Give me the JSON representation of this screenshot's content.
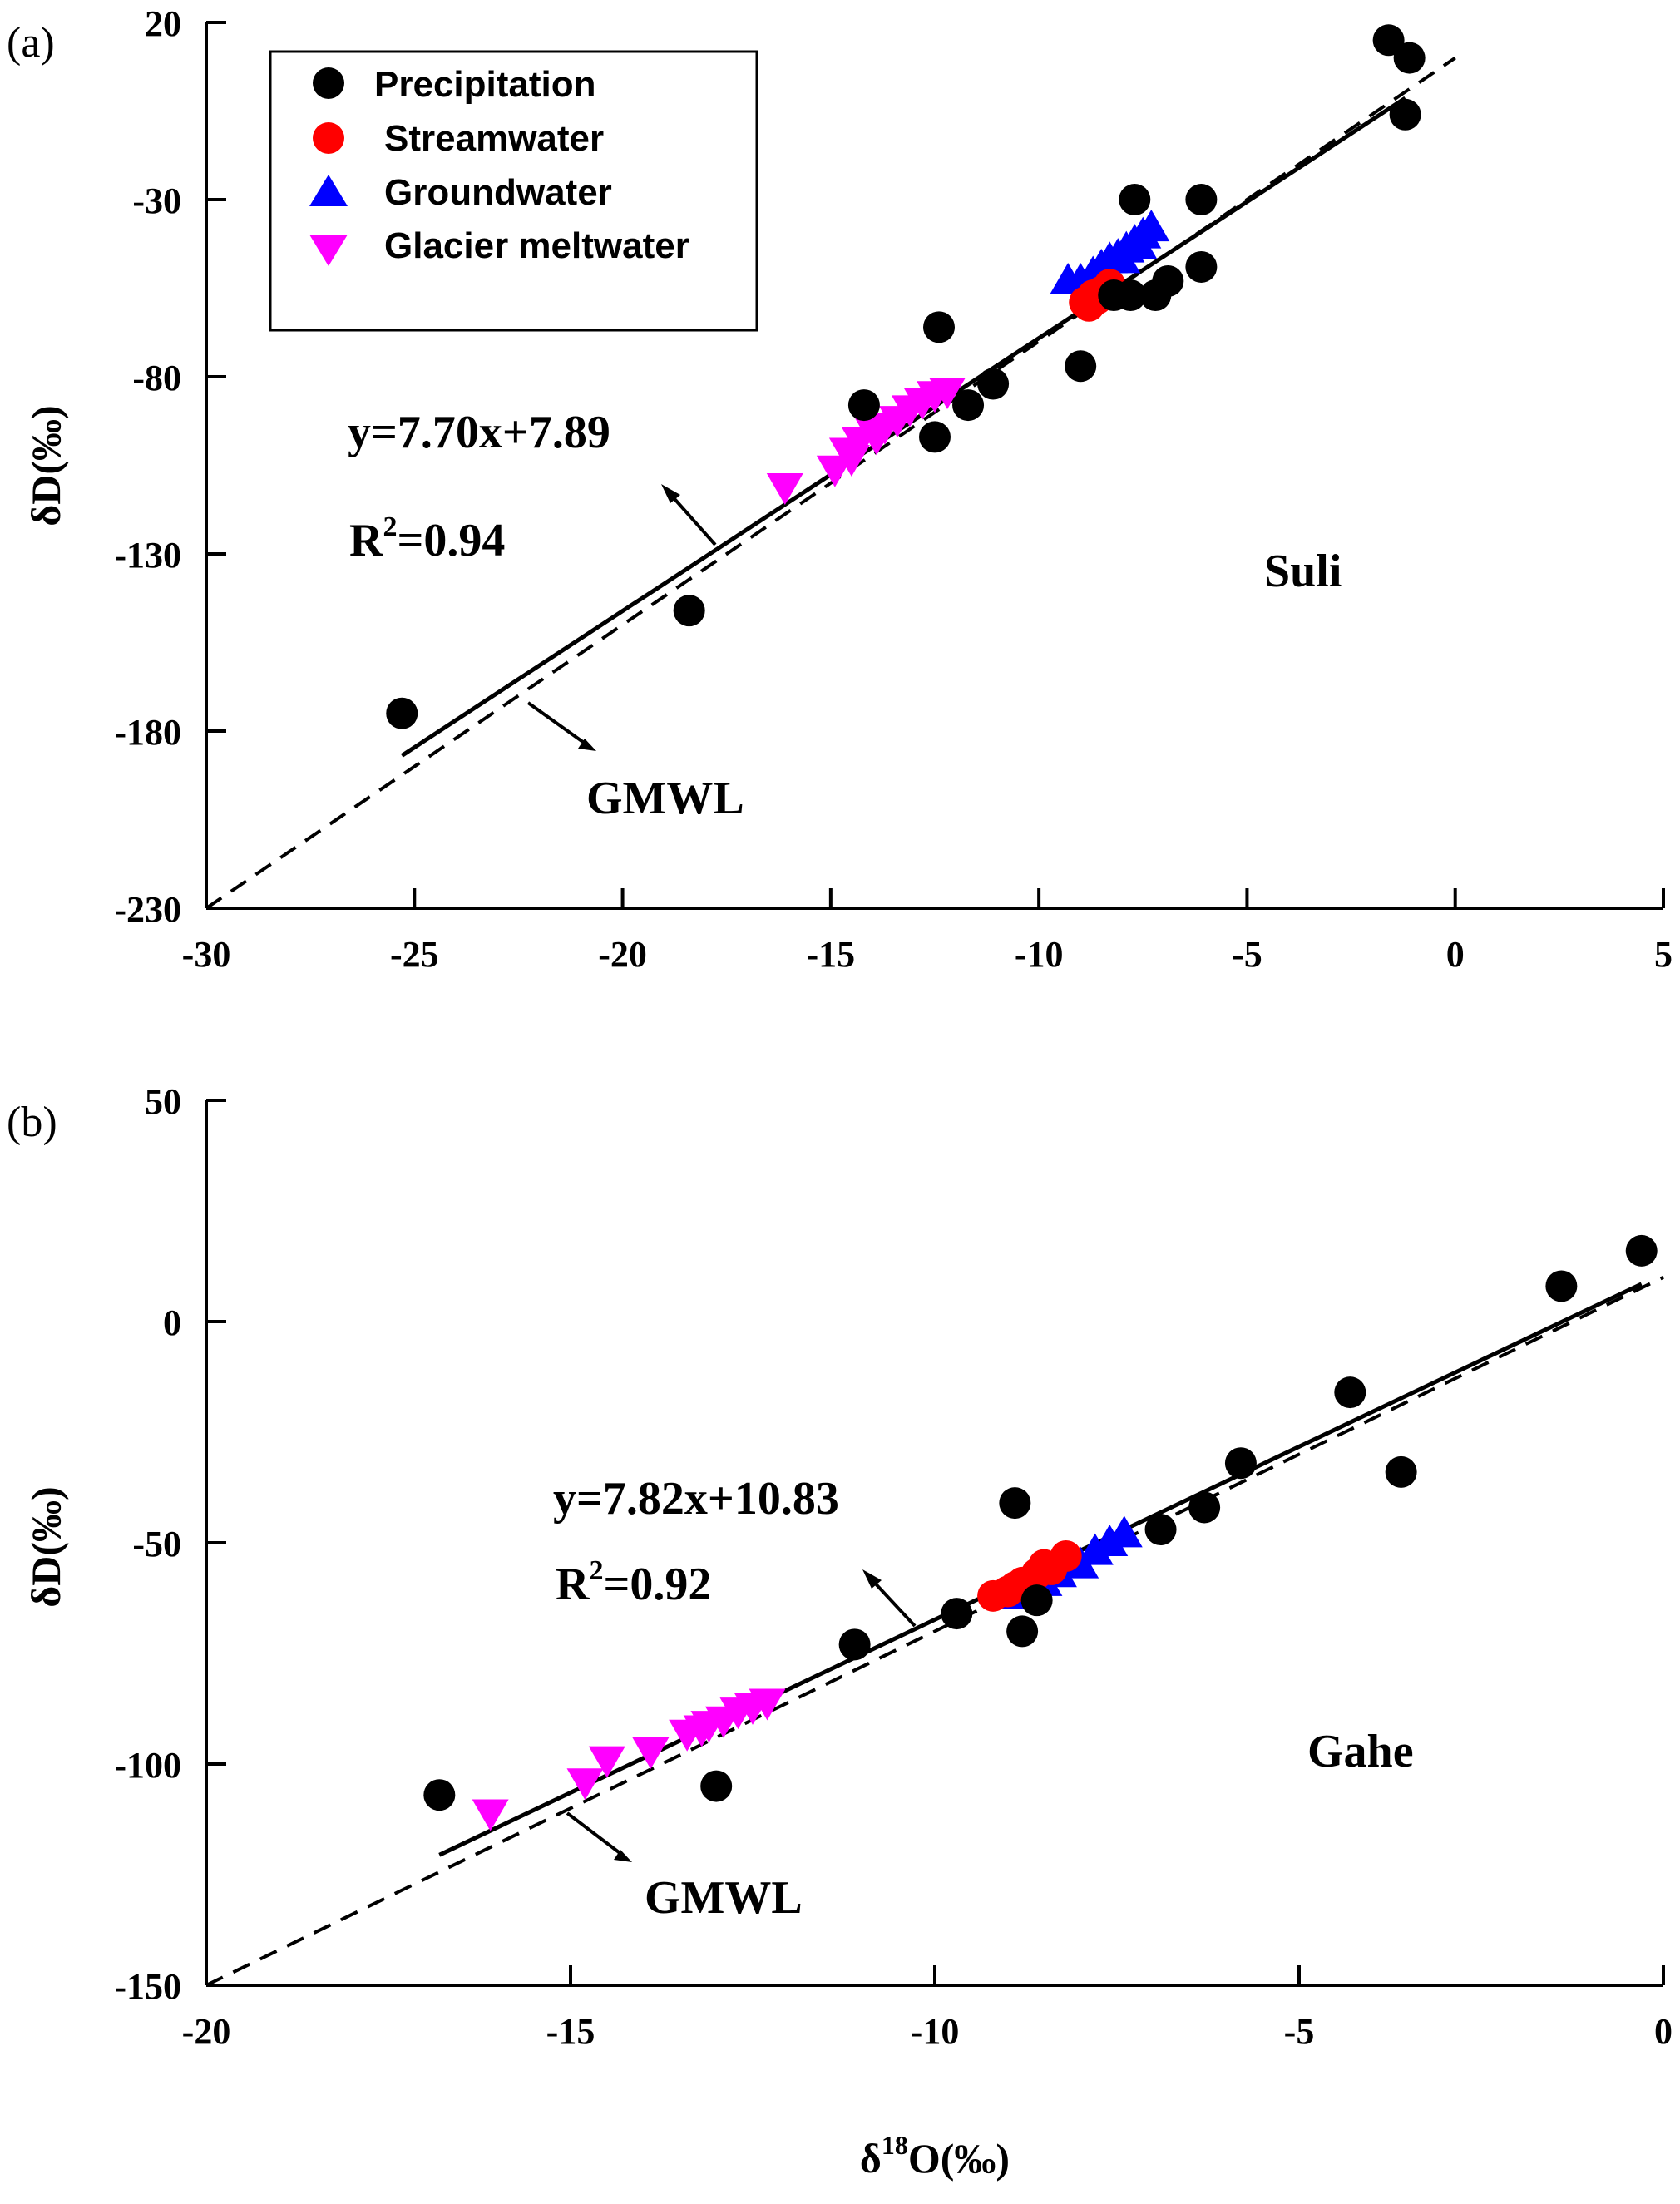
{
  "chart_data": [
    {
      "type": "scatter",
      "panel_label": "(a)",
      "site": "Suli",
      "xlabel": "",
      "ylabel": "δD(‰)",
      "xlim": [
        -30,
        5
      ],
      "ylim": [
        -230,
        20
      ],
      "xticks": [
        "-30",
        "-25",
        "-20",
        "-15",
        "-10",
        "-5",
        "0",
        "5"
      ],
      "yticks": [
        "20",
        "-30",
        "-80",
        "-130",
        "-180",
        "-230"
      ],
      "legend": {
        "placement": "top-left",
        "entries": [
          "Precipitation",
          "Streamwater",
          "Groundwater",
          "Glacier meltwater"
        ]
      },
      "series": [
        {
          "name": "Precipitation",
          "marker": "circle",
          "color": "#000000",
          "x": [
            -1.6,
            -1.1,
            -1.2,
            -7.7,
            -6.1,
            -6.1,
            -6.9,
            -7.2,
            -7.8,
            -8.2,
            -9.0,
            -12.4,
            -11.1,
            -11.7,
            -12.5,
            -14.2,
            -18.4,
            -25.3
          ],
          "y": [
            15,
            10,
            -6,
            -30,
            -30,
            -49,
            -53,
            -57,
            -57,
            -57,
            -77,
            -66,
            -82,
            -88,
            -97,
            -88,
            -146,
            -175
          ]
        },
        {
          "name": "Streamwater",
          "marker": "circle",
          "color": "#ff0000",
          "x": [
            -8.9,
            -8.7,
            -8.5,
            -8.3,
            -8.8,
            -8.6
          ],
          "y": [
            -59,
            -57,
            -56,
            -54,
            -60,
            -58
          ]
        },
        {
          "name": "Groundwater",
          "marker": "triangle-up",
          "color": "#0000ff",
          "x": [
            -9.3,
            -9.0,
            -8.7,
            -8.5,
            -8.3,
            -8.1,
            -7.9,
            -7.7,
            -7.5,
            -7.3,
            -8.0,
            -7.6
          ],
          "y": [
            -53,
            -53,
            -51,
            -49,
            -47,
            -46,
            -44,
            -42,
            -40,
            -38,
            -47,
            -43
          ]
        },
        {
          "name": "Glacier meltwater",
          "marker": "triangle-down",
          "color": "#ff00ff",
          "x": [
            -16.1,
            -14.9,
            -14.6,
            -14.3,
            -14.0,
            -13.7,
            -13.4,
            -13.1,
            -12.8,
            -12.5,
            -12.2,
            -13.9,
            -14.5
          ],
          "y": [
            -111,
            -106,
            -101,
            -98,
            -95,
            -94,
            -92,
            -89,
            -87,
            -85,
            -84,
            -97,
            -103
          ]
        }
      ],
      "fit_line": {
        "equation": "y=7.70x+7.89",
        "r2_prefix": "R",
        "r2_sup": "2",
        "r2_value": "=0.94",
        "slope": 7.7,
        "intercept": 7.89,
        "x_range": [
          -25.3,
          -1.2
        ]
      },
      "gmwl": {
        "label": "GMWL",
        "slope": 8,
        "intercept": 10,
        "x_range": [
          -30,
          0
        ]
      }
    },
    {
      "type": "scatter",
      "panel_label": "(b)",
      "site": "Gahe",
      "xlabel_prefix": "δ",
      "xlabel_sup": "18",
      "xlabel_suffix": "O(‰)",
      "ylabel": "δD(‰)",
      "xlim": [
        -20,
        0
      ],
      "ylim": [
        -150,
        50
      ],
      "xticks": [
        "-20",
        "-15",
        "-10",
        "-5",
        "0"
      ],
      "yticks": [
        "50",
        "0",
        "-50",
        "-100",
        "-150"
      ],
      "series": [
        {
          "name": "Precipitation",
          "marker": "circle",
          "color": "#000000",
          "x": [
            -0.3,
            -1.4,
            -4.3,
            -3.6,
            -5.8,
            -6.3,
            -6.9,
            -8.9,
            -9.7,
            -8.8,
            -8.6,
            -11.1,
            -13.0,
            -16.8
          ],
          "y": [
            16,
            8,
            -16,
            -34,
            -32,
            -42,
            -47,
            -41,
            -66,
            -70,
            -63,
            -73,
            -105,
            -107
          ]
        },
        {
          "name": "Streamwater",
          "marker": "circle",
          "color": "#ff0000",
          "x": [
            -9.2,
            -9.0,
            -8.8,
            -8.6,
            -8.4,
            -8.2,
            -8.9,
            -8.5
          ],
          "y": [
            -62,
            -61,
            -59,
            -57,
            -56,
            -53,
            -60,
            -55
          ]
        },
        {
          "name": "Groundwater",
          "marker": "triangle-up",
          "color": "#0000ff",
          "x": [
            -9.0,
            -8.8,
            -8.5,
            -8.3,
            -8.0,
            -7.8,
            -7.6,
            -7.4,
            -8.7,
            -8.1
          ],
          "y": [
            -62,
            -61,
            -59,
            -57,
            -55,
            -52,
            -50,
            -48,
            -60,
            -54
          ]
        },
        {
          "name": "Glacier meltwater",
          "marker": "triangle-down",
          "color": "#ff00ff",
          "x": [
            -16.1,
            -14.8,
            -14.5,
            -13.9,
            -13.4,
            -13.2,
            -12.9,
            -12.7,
            -12.5,
            -12.3,
            -13.1
          ],
          "y": [
            -111,
            -104,
            -99,
            -97,
            -93,
            -92,
            -90,
            -88,
            -87,
            -86,
            -91
          ]
        }
      ],
      "fit_line": {
        "equation": "y=7.82x+10.83",
        "r2_prefix": "R",
        "r2_sup": "2",
        "r2_value": "=0.92",
        "slope": 7.82,
        "intercept": 10.83,
        "x_range": [
          -16.8,
          -0.3
        ]
      },
      "gmwl": {
        "label": "GMWL",
        "slope": 8,
        "intercept": 10,
        "x_range": [
          -20,
          0
        ]
      }
    }
  ]
}
